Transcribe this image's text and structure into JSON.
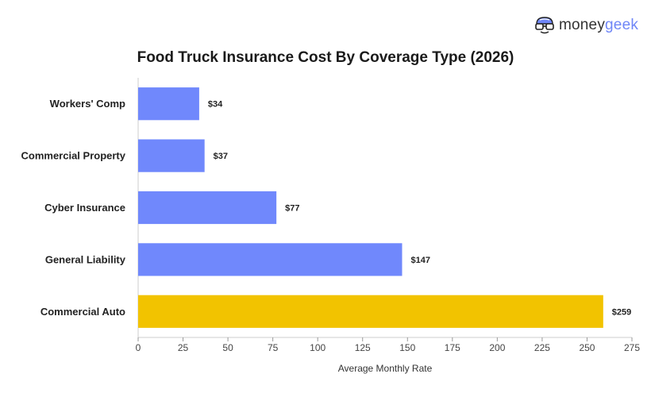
{
  "brand": {
    "name_main": "money",
    "name_accent": "geek",
    "accent_color": "#6f86f7",
    "icon": "nerd-glasses-icon"
  },
  "chart_data": {
    "type": "bar",
    "orientation": "horizontal",
    "title": "Food Truck Insurance Cost By Coverage Type (2026)",
    "xlabel": "Average Monthly Rate",
    "ylabel": "",
    "categories": [
      "Workers' Comp",
      "Commercial Property",
      "Cyber Insurance",
      "General Liability",
      "Commercial Auto"
    ],
    "values": [
      34,
      37,
      77,
      147,
      259
    ],
    "value_labels": [
      "$34",
      "$37",
      "$77",
      "$147",
      "$259"
    ],
    "colors": [
      "#7088fc",
      "#7088fc",
      "#7088fc",
      "#7088fc",
      "#f2c300"
    ],
    "xlim": [
      0,
      275
    ],
    "xticks": [
      0,
      25,
      50,
      75,
      100,
      125,
      150,
      175,
      200,
      225,
      250,
      275
    ],
    "grid": false
  }
}
